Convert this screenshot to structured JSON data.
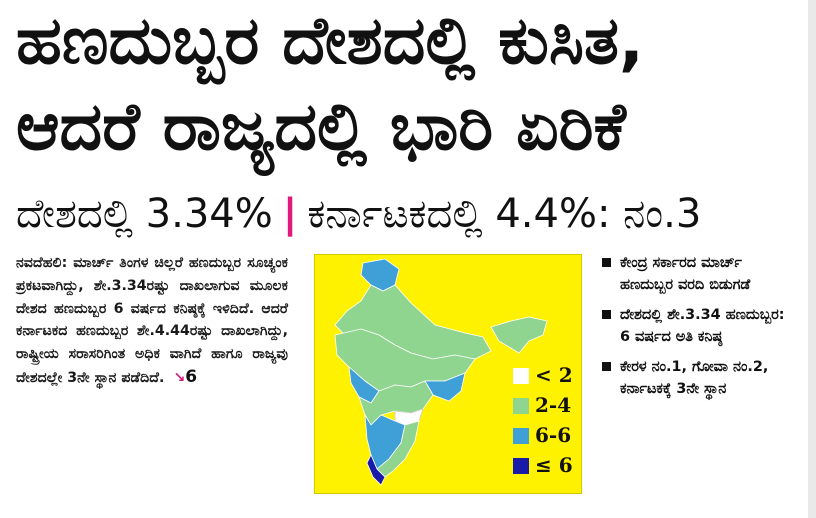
{
  "headline": {
    "line1": "ಹಣದುಬ್ಬರ ದೇಶದಲ್ಲಿ ಕುಸಿತ,",
    "line2": "ಆದರೆ ರಾಜ್ಯದಲ್ಲಿ ಭಾರಿ ಏರಿಕೆ"
  },
  "subheadline": {
    "left": "ದೇಶದಲ್ಲಿ 3.34%",
    "separator": "|",
    "right": "ಕರ್ನಾಟಕದಲ್ಲಿ 4.4%: ನಂ.3"
  },
  "article": {
    "text": "ನವದೆಹಲಿ: ಮಾರ್ಚ್ ತಿಂಗಳ ಚಿಲ್ಲರೆ ಹಣದುಬ್ಬರ ಸೂಚ್ಯಂಕ ಪ್ರಕಟವಾಗಿದ್ದು, ಶೇ.3.34ರಷ್ಟು ದಾಖಲಾಗುವ ಮೂಲಕ ದೇಶದ ಹಣದುಬ್ಬರ 6 ವರ್ಷದ ಕನಿಷ್ಠಕ್ಕೆ ಇಳಿದಿದೆ. ಆದರೆ ಕರ್ನಾಟಕದ ಹಣದುಬ್ಬರ ಶೇ.4.44ರಷ್ಟು ದಾಖಲಾಗಿದ್ದು, ರಾಷ್ಟ್ರೀಯ ಸರಾಸರಿಗಿಂತ ಅಧಿಕ ವಾಗಿದೆ ಹಾಗೂ ರಾಜ್ಯವು ದೇಶದಲ್ಲೇ 3ನೇ ಸ್ಥಾನ ಪಡೆದಿದೆ.",
    "continued_arrow": "↘",
    "continued_page": "6"
  },
  "map": {
    "colors": {
      "lt2": "#ffffff",
      "r2_4": "#8fd48f",
      "r4_6": "#3fa0d8",
      "ge6": "#1a1aa8",
      "bg": "#fff200"
    },
    "legend": [
      {
        "label": "< 2",
        "color": "#ffffff"
      },
      {
        "label": "2-4",
        "color": "#8fd48f"
      },
      {
        "label": "6-6",
        "color": "#3fa0d8"
      },
      {
        "label": "≤ 6",
        "color": "#1a1aa8"
      }
    ]
  },
  "bullets": [
    "ಕೇಂದ್ರ ಸರ್ಕಾರದ ಮಾರ್ಚ್ ಹಣದುಬ್ಬರ ವರದಿ ಬಿಡುಗಡೆ",
    "ದೇಶದಲ್ಲಿ ಶೇ.3.34 ಹಣದುಬ್ಬರ: 6 ವರ್ಷದ ಅತಿ ಕನಿಷ್ಠ",
    "ಕೇರಳ ನಂ.1, ಗೋವಾ ನಂ.2, ಕರ್ನಾಟಕಕ್ಕೆ 3ನೇ ಸ್ಥಾನ"
  ]
}
